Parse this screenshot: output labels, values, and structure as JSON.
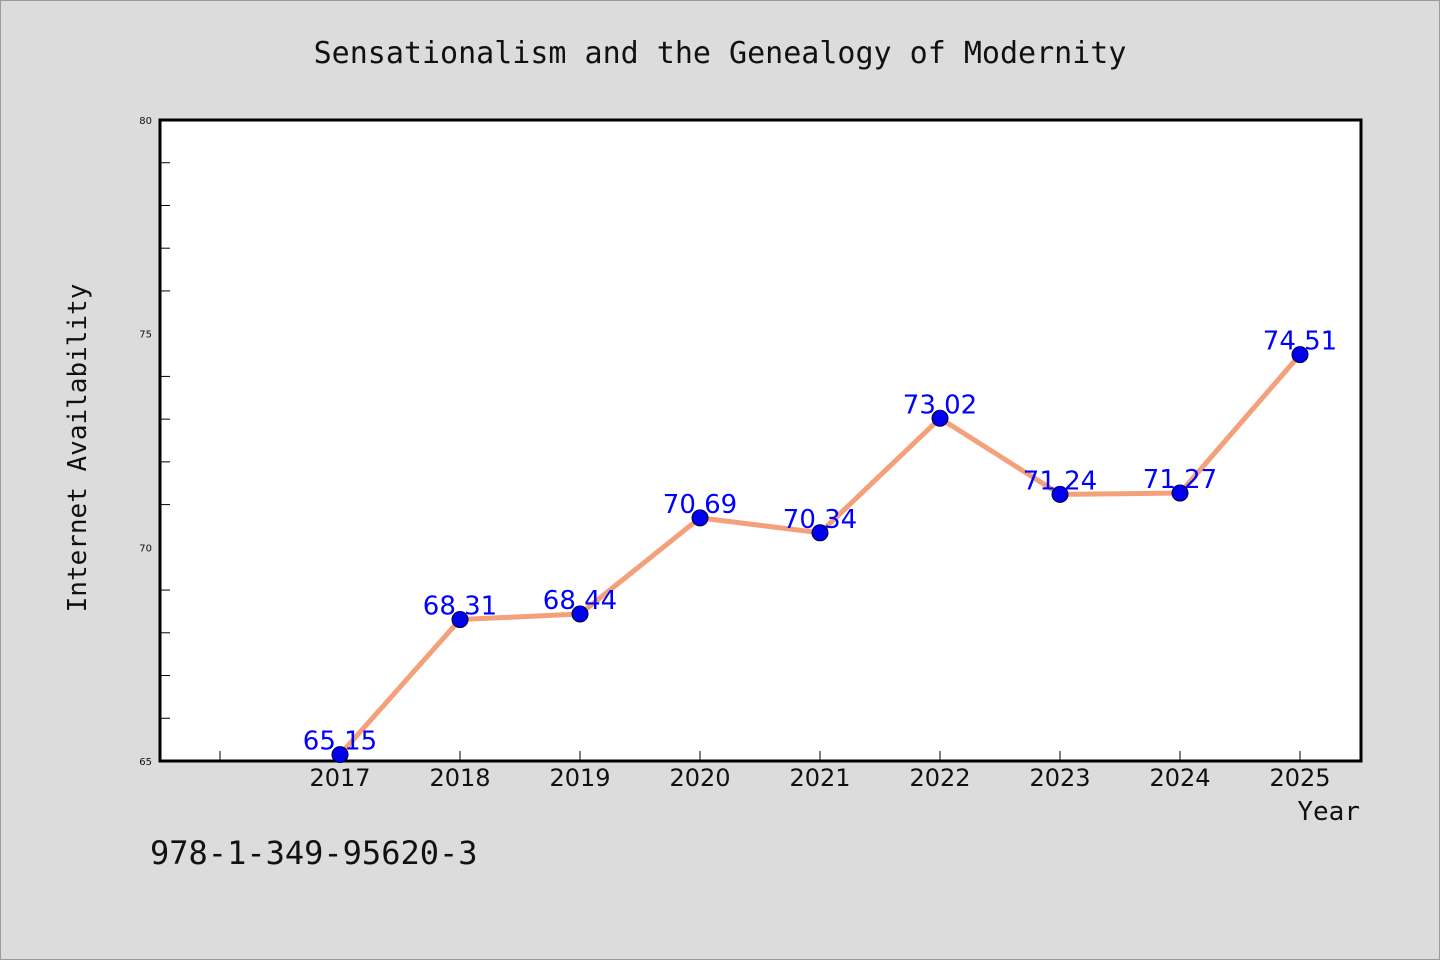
{
  "chart_data": {
    "type": "line",
    "title": "Sensationalism and the Genealogy of Modernity",
    "xlabel": "Year",
    "ylabel": "Internet Availability",
    "categories": [
      "2017",
      "2018",
      "2019",
      "2020",
      "2021",
      "2022",
      "2023",
      "2024",
      "2025"
    ],
    "series": [
      {
        "values": [
          65.15,
          68.31,
          68.44,
          70.69,
          70.34,
          73.02,
          71.24,
          71.27,
          74.51
        ],
        "labels": [
          "65.15",
          "68.31",
          "68.44",
          "70.69",
          "70.34",
          "73.02",
          "71.24",
          "71.27",
          "74.51"
        ],
        "line_color": "#f4a07a",
        "marker_color": "#0000ee",
        "label_color": "#0000ff"
      }
    ],
    "ylim": [
      65,
      80
    ],
    "yticks": [
      "65",
      "70",
      "75",
      "80"
    ],
    "grid": false,
    "legend": "none"
  },
  "footer": {
    "text": "978-1-349-95620-3"
  },
  "colors": {
    "background": "#dcdcdc",
    "plot_background": "#ffffff",
    "axes": "#000000"
  }
}
